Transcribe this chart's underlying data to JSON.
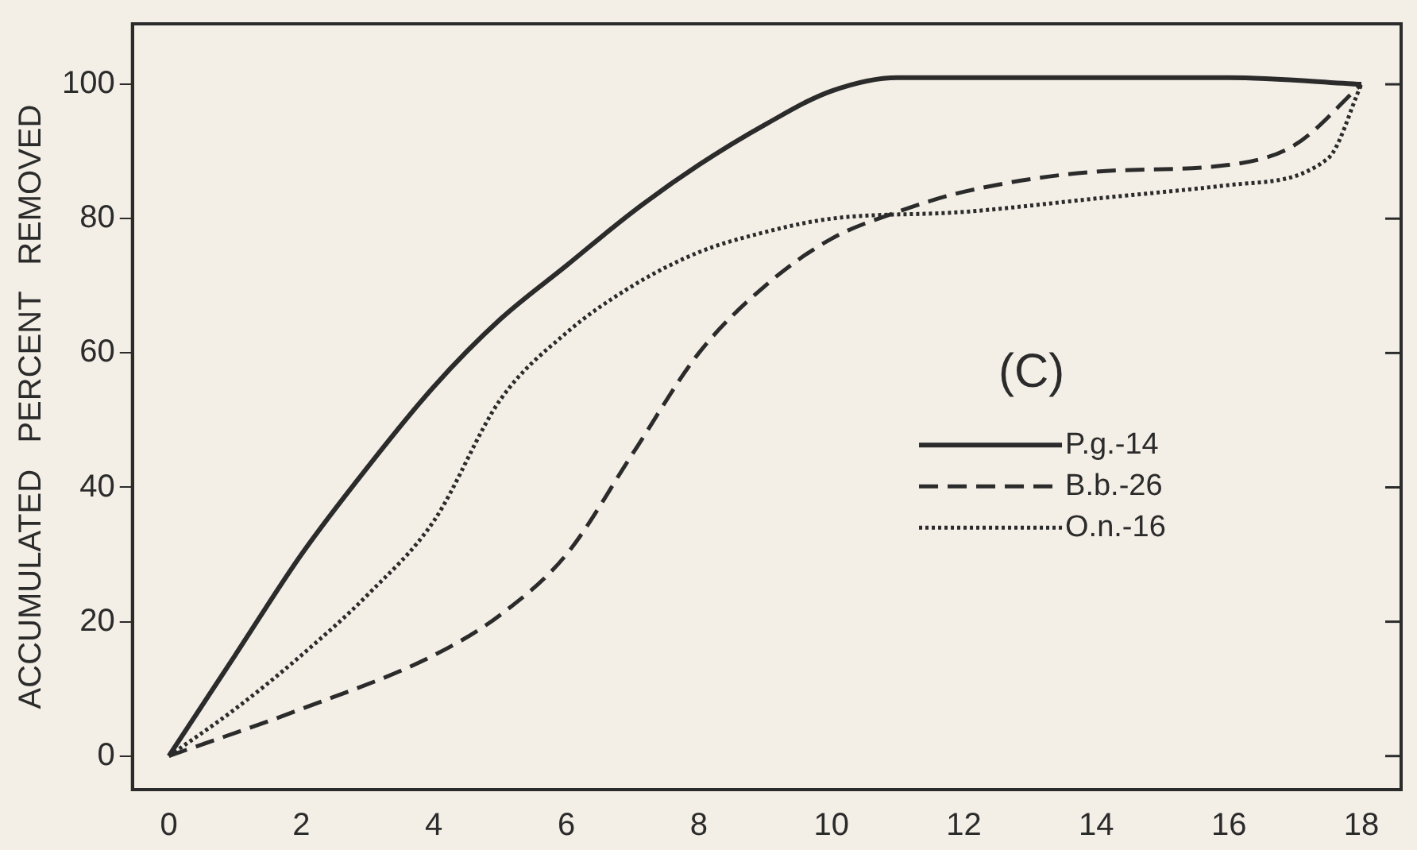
{
  "chart_data": {
    "type": "line",
    "ylabel": "ACCUMULATED   PERCENT   REMOVED",
    "annotations": [
      "(C)"
    ],
    "xlim": [
      -0.55,
      18.6
    ],
    "xticks": [
      0,
      2,
      4,
      6,
      8,
      10,
      12,
      14,
      16,
      18
    ],
    "ylim": [
      -5,
      109
    ],
    "yticks": [
      0,
      20,
      40,
      60,
      80,
      100
    ],
    "grid": false,
    "legend": "right",
    "marker": "none",
    "series": [
      {
        "name": "P.g.-14",
        "color": "#2b2b2b",
        "line_style": "solid",
        "x": [
          0,
          1,
          2,
          3,
          4,
          5,
          6,
          7,
          8,
          9,
          10,
          11,
          12,
          14,
          16,
          18
        ],
        "values": [
          0,
          15,
          30,
          43,
          55,
          65,
          73,
          81,
          88,
          94,
          99,
          101,
          101,
          101,
          101,
          100
        ]
      },
      {
        "name": "B.b.-26",
        "color": "#2b2b2b",
        "line_style": "dashed",
        "x": [
          0,
          2,
          4,
          5,
          6,
          7,
          8,
          9,
          10,
          11,
          12,
          14,
          16,
          17,
          18
        ],
        "values": [
          0,
          7,
          15,
          21,
          30,
          45,
          60,
          70,
          77,
          81,
          84,
          87,
          88,
          91,
          100
        ]
      },
      {
        "name": "O.n.-16",
        "color": "#2b2b2b",
        "line_style": "dotted",
        "x": [
          0,
          1,
          2,
          3,
          4,
          5,
          6,
          7,
          8,
          9,
          10,
          12,
          14,
          16,
          17.5,
          18
        ],
        "values": [
          0,
          7,
          15,
          24,
          35,
          53,
          63,
          70,
          75,
          78,
          80,
          81,
          83,
          85,
          89,
          100
        ]
      }
    ]
  }
}
